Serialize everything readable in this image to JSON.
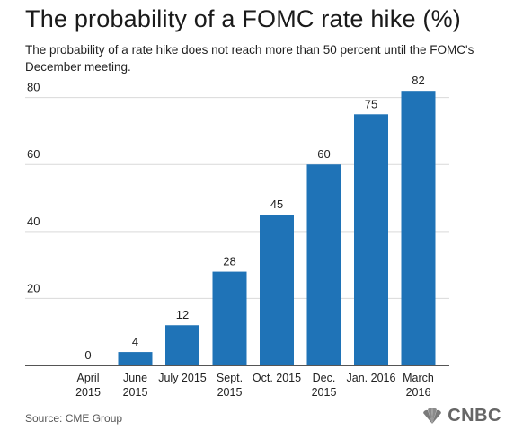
{
  "header": {
    "title": "The probability of a FOMC rate hike (%)",
    "subtitle": "The probability of a rate hike does not reach more than 50 percent until the FOMC's December meeting."
  },
  "footer": {
    "source": "Source: CME Group",
    "brand": "CNBC"
  },
  "colors": {
    "bar": "#1f73b7",
    "grid": "#d9d9d9",
    "axis": "#555555"
  },
  "chart_data": {
    "type": "bar",
    "categories": [
      [
        "April",
        "2015"
      ],
      [
        "June",
        "2015"
      ],
      [
        "July 2015"
      ],
      [
        "Sept.",
        "2015"
      ],
      [
        "Oct. 2015"
      ],
      [
        "Dec.",
        "2015"
      ],
      [
        "Jan. 2016"
      ],
      [
        "March",
        "2016"
      ]
    ],
    "values": [
      0,
      4,
      12,
      28,
      45,
      60,
      75,
      82
    ],
    "yticks": [
      20,
      40,
      60,
      80
    ],
    "ylim": [
      0,
      85
    ],
    "grid": true,
    "title": "The probability of a FOMC rate hike (%)",
    "xlabel": "",
    "ylabel": ""
  }
}
